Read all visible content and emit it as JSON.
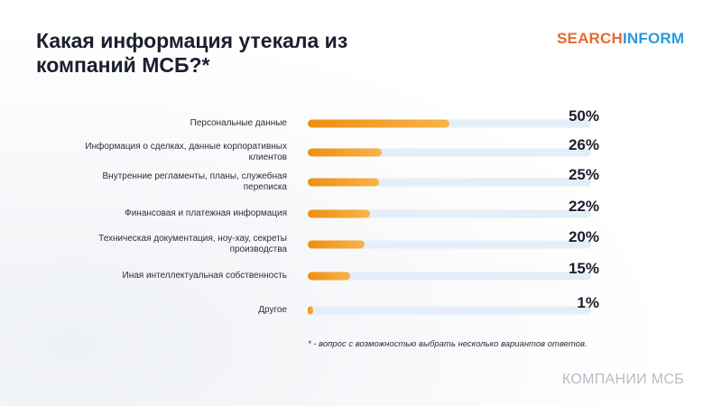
{
  "header": {
    "title": "Какая информация утекала из компаний МСБ?*",
    "logo": "SEARCHINFORM",
    "logo_part1": "SEARCH",
    "logo_part2": "INFORM"
  },
  "chart_data": {
    "type": "bar",
    "orientation": "horizontal",
    "xlim": [
      0,
      100
    ],
    "categories": [
      "Персональные данные",
      "Информация о сделках, данные корпоративных клиентов",
      "Внутренние регламенты, планы, служебная переписка",
      "Финансовая и платежная информация",
      "Техническая документация, ноу-хау, секреты производства",
      "Иная интеллектуальная собственность",
      "Другое"
    ],
    "values": [
      50,
      26,
      25,
      22,
      20,
      15,
      1
    ],
    "value_labels": [
      "50%",
      "26%",
      "25%",
      "22%",
      "20%",
      "15%",
      "1%"
    ],
    "bar_color": "#f09a1e",
    "track_color": "#e3eef8"
  },
  "footnote": "* - вопрос с возможностью выбрать несколько вариантов ответов.",
  "footer": "КОМПАНИИ МСБ"
}
